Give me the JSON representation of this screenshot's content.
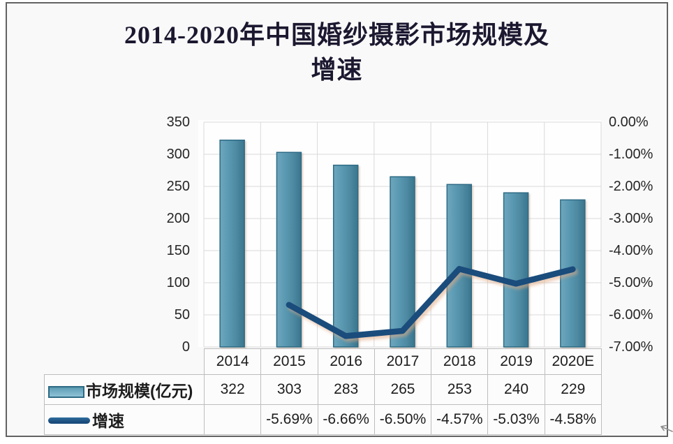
{
  "title": {
    "line1": "2014-2020年中国婚纱摄影市场规模及",
    "line2": "增速"
  },
  "chart_data": {
    "type": "bar+line combo",
    "title": "2014-2020年中国婚纱摄影市场规模及增速",
    "categories": [
      "2014",
      "2015",
      "2016",
      "2017",
      "2018",
      "2019",
      "2020E"
    ],
    "series": [
      {
        "name": "市场规模(亿元)",
        "type": "bar",
        "axis": "left",
        "values": [
          322,
          303,
          283,
          265,
          253,
          240,
          229
        ]
      },
      {
        "name": "增速",
        "type": "line",
        "axis": "right",
        "values": [
          null,
          -5.69,
          -6.66,
          -6.5,
          -4.57,
          -5.03,
          -4.58
        ]
      }
    ],
    "left_axis": {
      "min": 0,
      "max": 350,
      "step": 50,
      "ticks": [
        "350",
        "300",
        "250",
        "200",
        "150",
        "100",
        "50",
        "0"
      ]
    },
    "right_axis": {
      "min": -7,
      "max": 0,
      "step": 1,
      "ticks": [
        "0.00%",
        "-1.00%",
        "-2.00%",
        "-3.00%",
        "-4.00%",
        "-5.00%",
        "-6.00%",
        "-7.00%"
      ]
    },
    "grid": "horizontal and vertical major gridlines",
    "legend_position": "table-left"
  },
  "table": {
    "header": [
      "2014",
      "2015",
      "2016",
      "2017",
      "2018",
      "2019",
      "2020E"
    ],
    "rows": [
      {
        "legend": "市场规模(亿元)",
        "swatch": "bar",
        "values": [
          "322",
          "303",
          "283",
          "265",
          "253",
          "240",
          "229"
        ]
      },
      {
        "legend": "增速",
        "swatch": "line",
        "values": [
          "",
          "-5.69%",
          "-6.66%",
          "-6.50%",
          "-4.57%",
          "-5.03%",
          "-4.58%"
        ]
      }
    ]
  },
  "colors": {
    "bar_fill": "#4f8ba3",
    "bar_fill_light": "#74aec4",
    "bar_border": "#2e6b85",
    "line": "#1a4c7c",
    "grid": "#d9d9d9",
    "title_text": "#1c1830",
    "axis_text": "#262626",
    "table_border": "#bdbdbd",
    "frame_border": "#636363",
    "background": "#faf9f9"
  }
}
